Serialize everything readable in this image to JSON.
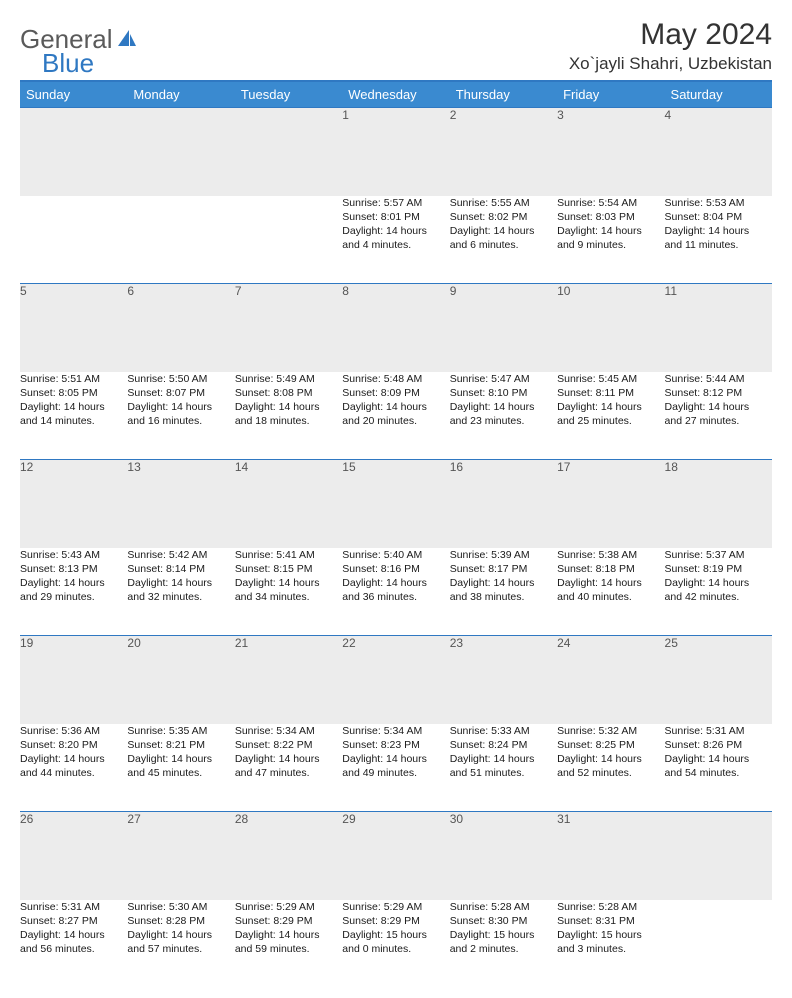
{
  "brand": {
    "part1": "General",
    "part2": "Blue"
  },
  "title": "May 2024",
  "location": "Xo`jayli Shahri, Uzbekistan",
  "colors": {
    "header_bg": "#3a8ad0",
    "accent_line": "#2f78c2",
    "daynum_bg": "#ececec",
    "text": "#1a1a1a",
    "brand_gray": "#5a5a5a",
    "brand_blue": "#2f78c2"
  },
  "weekdays": [
    "Sunday",
    "Monday",
    "Tuesday",
    "Wednesday",
    "Thursday",
    "Friday",
    "Saturday"
  ],
  "weeks": [
    {
      "nums": [
        "",
        "",
        "",
        "1",
        "2",
        "3",
        "4"
      ],
      "cells": [
        null,
        null,
        null,
        {
          "sunrise": "Sunrise: 5:57 AM",
          "sunset": "Sunset: 8:01 PM",
          "day1": "Daylight: 14 hours",
          "day2": "and 4 minutes."
        },
        {
          "sunrise": "Sunrise: 5:55 AM",
          "sunset": "Sunset: 8:02 PM",
          "day1": "Daylight: 14 hours",
          "day2": "and 6 minutes."
        },
        {
          "sunrise": "Sunrise: 5:54 AM",
          "sunset": "Sunset: 8:03 PM",
          "day1": "Daylight: 14 hours",
          "day2": "and 9 minutes."
        },
        {
          "sunrise": "Sunrise: 5:53 AM",
          "sunset": "Sunset: 8:04 PM",
          "day1": "Daylight: 14 hours",
          "day2": "and 11 minutes."
        }
      ]
    },
    {
      "nums": [
        "5",
        "6",
        "7",
        "8",
        "9",
        "10",
        "11"
      ],
      "cells": [
        {
          "sunrise": "Sunrise: 5:51 AM",
          "sunset": "Sunset: 8:05 PM",
          "day1": "Daylight: 14 hours",
          "day2": "and 14 minutes."
        },
        {
          "sunrise": "Sunrise: 5:50 AM",
          "sunset": "Sunset: 8:07 PM",
          "day1": "Daylight: 14 hours",
          "day2": "and 16 minutes."
        },
        {
          "sunrise": "Sunrise: 5:49 AM",
          "sunset": "Sunset: 8:08 PM",
          "day1": "Daylight: 14 hours",
          "day2": "and 18 minutes."
        },
        {
          "sunrise": "Sunrise: 5:48 AM",
          "sunset": "Sunset: 8:09 PM",
          "day1": "Daylight: 14 hours",
          "day2": "and 20 minutes."
        },
        {
          "sunrise": "Sunrise: 5:47 AM",
          "sunset": "Sunset: 8:10 PM",
          "day1": "Daylight: 14 hours",
          "day2": "and 23 minutes."
        },
        {
          "sunrise": "Sunrise: 5:45 AM",
          "sunset": "Sunset: 8:11 PM",
          "day1": "Daylight: 14 hours",
          "day2": "and 25 minutes."
        },
        {
          "sunrise": "Sunrise: 5:44 AM",
          "sunset": "Sunset: 8:12 PM",
          "day1": "Daylight: 14 hours",
          "day2": "and 27 minutes."
        }
      ]
    },
    {
      "nums": [
        "12",
        "13",
        "14",
        "15",
        "16",
        "17",
        "18"
      ],
      "cells": [
        {
          "sunrise": "Sunrise: 5:43 AM",
          "sunset": "Sunset: 8:13 PM",
          "day1": "Daylight: 14 hours",
          "day2": "and 29 minutes."
        },
        {
          "sunrise": "Sunrise: 5:42 AM",
          "sunset": "Sunset: 8:14 PM",
          "day1": "Daylight: 14 hours",
          "day2": "and 32 minutes."
        },
        {
          "sunrise": "Sunrise: 5:41 AM",
          "sunset": "Sunset: 8:15 PM",
          "day1": "Daylight: 14 hours",
          "day2": "and 34 minutes."
        },
        {
          "sunrise": "Sunrise: 5:40 AM",
          "sunset": "Sunset: 8:16 PM",
          "day1": "Daylight: 14 hours",
          "day2": "and 36 minutes."
        },
        {
          "sunrise": "Sunrise: 5:39 AM",
          "sunset": "Sunset: 8:17 PM",
          "day1": "Daylight: 14 hours",
          "day2": "and 38 minutes."
        },
        {
          "sunrise": "Sunrise: 5:38 AM",
          "sunset": "Sunset: 8:18 PM",
          "day1": "Daylight: 14 hours",
          "day2": "and 40 minutes."
        },
        {
          "sunrise": "Sunrise: 5:37 AM",
          "sunset": "Sunset: 8:19 PM",
          "day1": "Daylight: 14 hours",
          "day2": "and 42 minutes."
        }
      ]
    },
    {
      "nums": [
        "19",
        "20",
        "21",
        "22",
        "23",
        "24",
        "25"
      ],
      "cells": [
        {
          "sunrise": "Sunrise: 5:36 AM",
          "sunset": "Sunset: 8:20 PM",
          "day1": "Daylight: 14 hours",
          "day2": "and 44 minutes."
        },
        {
          "sunrise": "Sunrise: 5:35 AM",
          "sunset": "Sunset: 8:21 PM",
          "day1": "Daylight: 14 hours",
          "day2": "and 45 minutes."
        },
        {
          "sunrise": "Sunrise: 5:34 AM",
          "sunset": "Sunset: 8:22 PM",
          "day1": "Daylight: 14 hours",
          "day2": "and 47 minutes."
        },
        {
          "sunrise": "Sunrise: 5:34 AM",
          "sunset": "Sunset: 8:23 PM",
          "day1": "Daylight: 14 hours",
          "day2": "and 49 minutes."
        },
        {
          "sunrise": "Sunrise: 5:33 AM",
          "sunset": "Sunset: 8:24 PM",
          "day1": "Daylight: 14 hours",
          "day2": "and 51 minutes."
        },
        {
          "sunrise": "Sunrise: 5:32 AM",
          "sunset": "Sunset: 8:25 PM",
          "day1": "Daylight: 14 hours",
          "day2": "and 52 minutes."
        },
        {
          "sunrise": "Sunrise: 5:31 AM",
          "sunset": "Sunset: 8:26 PM",
          "day1": "Daylight: 14 hours",
          "day2": "and 54 minutes."
        }
      ]
    },
    {
      "nums": [
        "26",
        "27",
        "28",
        "29",
        "30",
        "31",
        ""
      ],
      "cells": [
        {
          "sunrise": "Sunrise: 5:31 AM",
          "sunset": "Sunset: 8:27 PM",
          "day1": "Daylight: 14 hours",
          "day2": "and 56 minutes."
        },
        {
          "sunrise": "Sunrise: 5:30 AM",
          "sunset": "Sunset: 8:28 PM",
          "day1": "Daylight: 14 hours",
          "day2": "and 57 minutes."
        },
        {
          "sunrise": "Sunrise: 5:29 AM",
          "sunset": "Sunset: 8:29 PM",
          "day1": "Daylight: 14 hours",
          "day2": "and 59 minutes."
        },
        {
          "sunrise": "Sunrise: 5:29 AM",
          "sunset": "Sunset: 8:29 PM",
          "day1": "Daylight: 15 hours",
          "day2": "and 0 minutes."
        },
        {
          "sunrise": "Sunrise: 5:28 AM",
          "sunset": "Sunset: 8:30 PM",
          "day1": "Daylight: 15 hours",
          "day2": "and 2 minutes."
        },
        {
          "sunrise": "Sunrise: 5:28 AM",
          "sunset": "Sunset: 8:31 PM",
          "day1": "Daylight: 15 hours",
          "day2": "and 3 minutes."
        },
        null
      ]
    }
  ]
}
